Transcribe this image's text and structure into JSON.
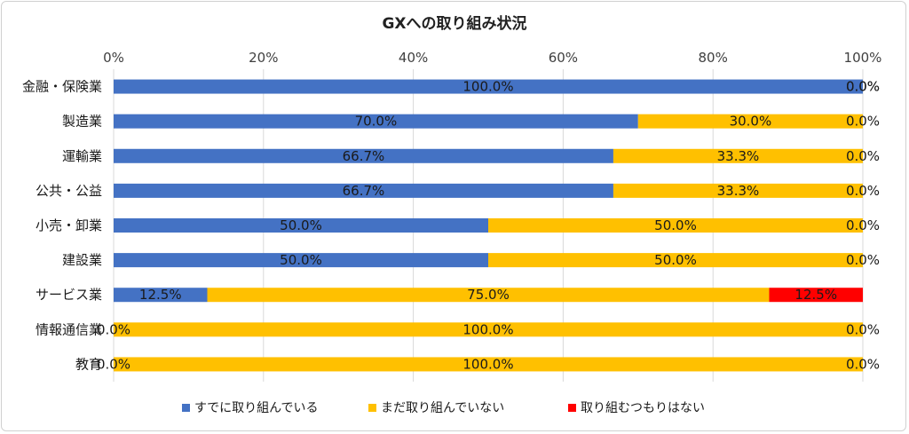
{
  "chart_data": {
    "type": "bar",
    "orientation": "horizontal",
    "stacked": "percent",
    "title": "GXへの取り組み状況",
    "xlim": [
      0,
      100
    ],
    "x_ticks": [
      "0%",
      "20%",
      "40%",
      "60%",
      "80%",
      "100%"
    ],
    "grid": true,
    "legend_position": "bottom",
    "categories": [
      "金融・保険業",
      "製造業",
      "運輸業",
      "公共・公益",
      "小売・卸業",
      "建設業",
      "サービス業",
      "情報通信業",
      "教育"
    ],
    "series": [
      {
        "name": "すでに取り組んでいる",
        "color": "#4472C4",
        "values": [
          100.0,
          70.0,
          66.7,
          66.7,
          50.0,
          50.0,
          12.5,
          0.0,
          0.0
        ],
        "labels": [
          "100.0%",
          "70.0%",
          "66.7%",
          "66.7%",
          "50.0%",
          "50.0%",
          "12.5%",
          "0.0%",
          "0.0%"
        ]
      },
      {
        "name": "まだ取り組んでいない",
        "color": "#FFC000",
        "values": [
          0.0,
          30.0,
          33.3,
          33.3,
          50.0,
          50.0,
          75.0,
          100.0,
          100.0
        ],
        "labels": [
          "0.0%",
          "30.0%",
          "33.3%",
          "33.3%",
          "50.0%",
          "50.0%",
          "75.0%",
          "100.0%",
          "100.0%"
        ]
      },
      {
        "name": "取り組むつもりはない",
        "color": "#FF0000",
        "values": [
          0.0,
          0.0,
          0.0,
          0.0,
          0.0,
          0.0,
          12.5,
          0.0,
          0.0
        ],
        "labels": [
          "0.0%",
          "0.0%",
          "0.0%",
          "0.0%",
          "0.0%",
          "0.0%",
          "12.5%",
          "0.0%",
          "0.0%"
        ]
      }
    ]
  }
}
